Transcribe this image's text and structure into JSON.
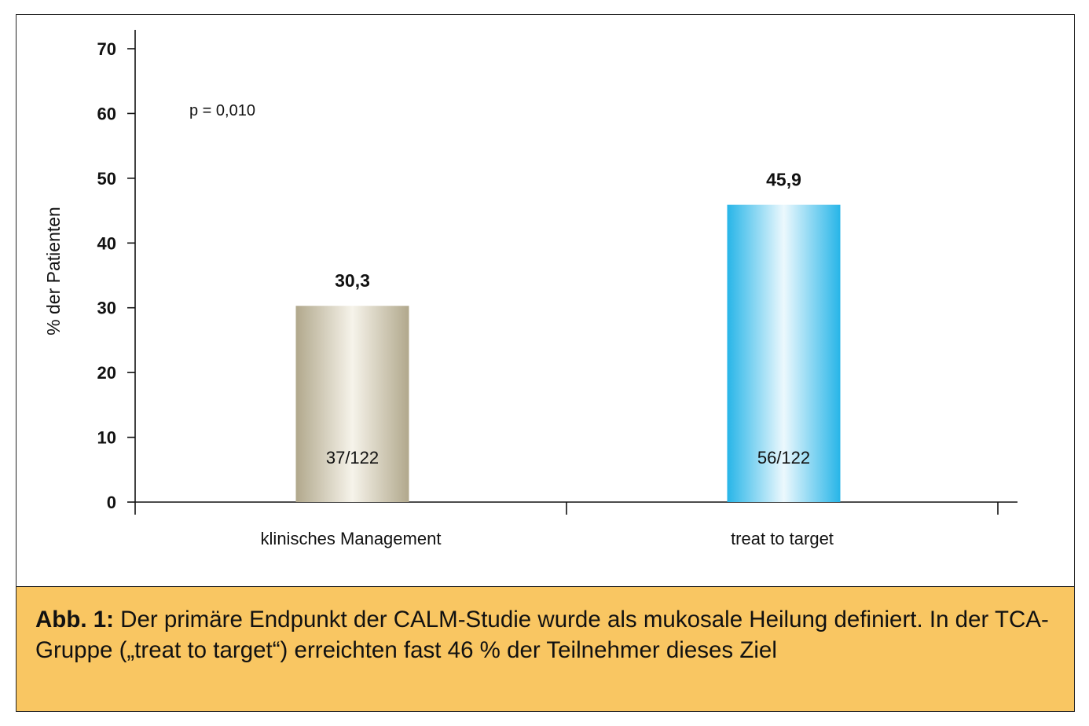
{
  "chart_data": {
    "type": "bar",
    "categories": [
      "klinisches Management",
      "treat to target"
    ],
    "values": [
      30.3,
      45.9
    ],
    "value_labels": [
      "30,3",
      "45,9"
    ],
    "n_labels": [
      "37/122",
      "56/122"
    ],
    "bar_colors": [
      "#b3aa8f",
      "#2bb8ea"
    ],
    "ylabel": "% der Patienten",
    "ylim": [
      0,
      70
    ],
    "yticks": [
      "0",
      "10",
      "20",
      "30",
      "40",
      "50",
      "60",
      "70"
    ],
    "annotation": "p = 0,010",
    "grid": false
  },
  "caption": {
    "label": "Abb. 1:",
    "text": " Der primäre Endpunkt der CALM-Studie wurde als mukosale Heilung definiert. In der TCA-Gruppe („treat to target“) erreichten fast 46 % der Teilnehmer dieses Ziel"
  }
}
